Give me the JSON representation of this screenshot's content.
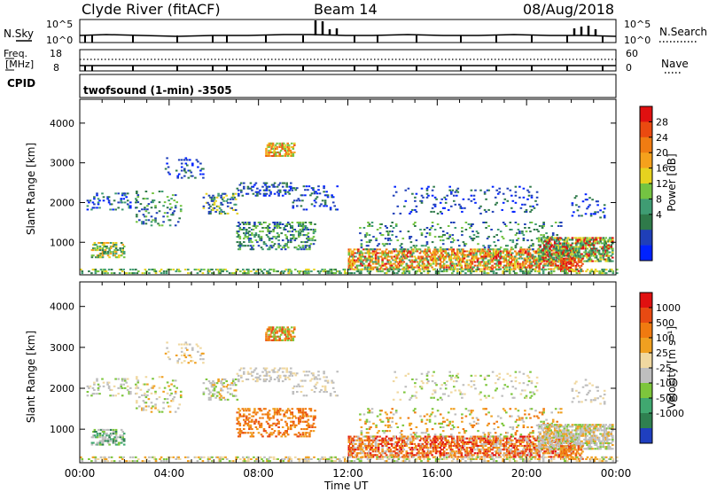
{
  "header": {
    "station": "Clyde River (fitACF)",
    "beam": "Beam 14",
    "date": "08/Aug/2018"
  },
  "noise_panel": {
    "left_label": "N.Sky",
    "right_label": "N.Search",
    "left_ticks": [
      "10^5",
      "10^0"
    ],
    "right_ticks": [
      "10^5",
      "10^0"
    ]
  },
  "freq_panel": {
    "left_label_1": "Freq.",
    "left_label_2": "[MHz]",
    "right_label": "Nave",
    "left_ticks": [
      "18",
      "8"
    ],
    "right_ticks": [
      "60",
      "0"
    ],
    "cpid_label": "CPID",
    "cpid_value": "twofsound (1-min)  -3505"
  },
  "chart_data": [
    {
      "type": "heatmap",
      "name": "power",
      "ylabel": "Slant Range [km]",
      "xlabel": "",
      "ylim": [
        180,
        4600
      ],
      "y_ticks": [
        1000,
        2000,
        3000,
        4000
      ],
      "x_ticks": [
        "00:00",
        "04:00",
        "08:00",
        "12:00",
        "16:00",
        "20:00",
        "00:00"
      ],
      "colorbar_label": "Power [dB]",
      "colorbar_ticks": [
        "28",
        "24",
        "20",
        "16",
        "12",
        "8",
        "4"
      ],
      "colors": [
        "#0022ff",
        "#1f3fb8",
        "#2f7a4a",
        "#3f9c73",
        "#74c442",
        "#e6d21f",
        "#f5a11c",
        "#f07c12",
        "#ea4a10",
        "#e01010"
      ]
    },
    {
      "type": "heatmap",
      "name": "velocity",
      "ylabel": "Slant Range [km]",
      "xlabel": "Time UT",
      "ylim": [
        180,
        4600
      ],
      "y_ticks": [
        1000,
        2000,
        3000,
        4000
      ],
      "x_ticks": [
        "00:00",
        "04:00",
        "08:00",
        "12:00",
        "16:00",
        "20:00",
        "00:00"
      ],
      "colorbar_label": "Velocity [m s⁻¹]",
      "colorbar_ticks": [
        "1000",
        "500",
        "100",
        "25",
        "-25",
        "-100",
        "-500",
        "-1000"
      ],
      "colors": [
        "#1f3fbf",
        "#2f8050",
        "#40a870",
        "#7dc63c",
        "#bebebe",
        "#f0d8a0",
        "#f0a020",
        "#f07a10",
        "#e84a12",
        "#e01010"
      ]
    }
  ]
}
